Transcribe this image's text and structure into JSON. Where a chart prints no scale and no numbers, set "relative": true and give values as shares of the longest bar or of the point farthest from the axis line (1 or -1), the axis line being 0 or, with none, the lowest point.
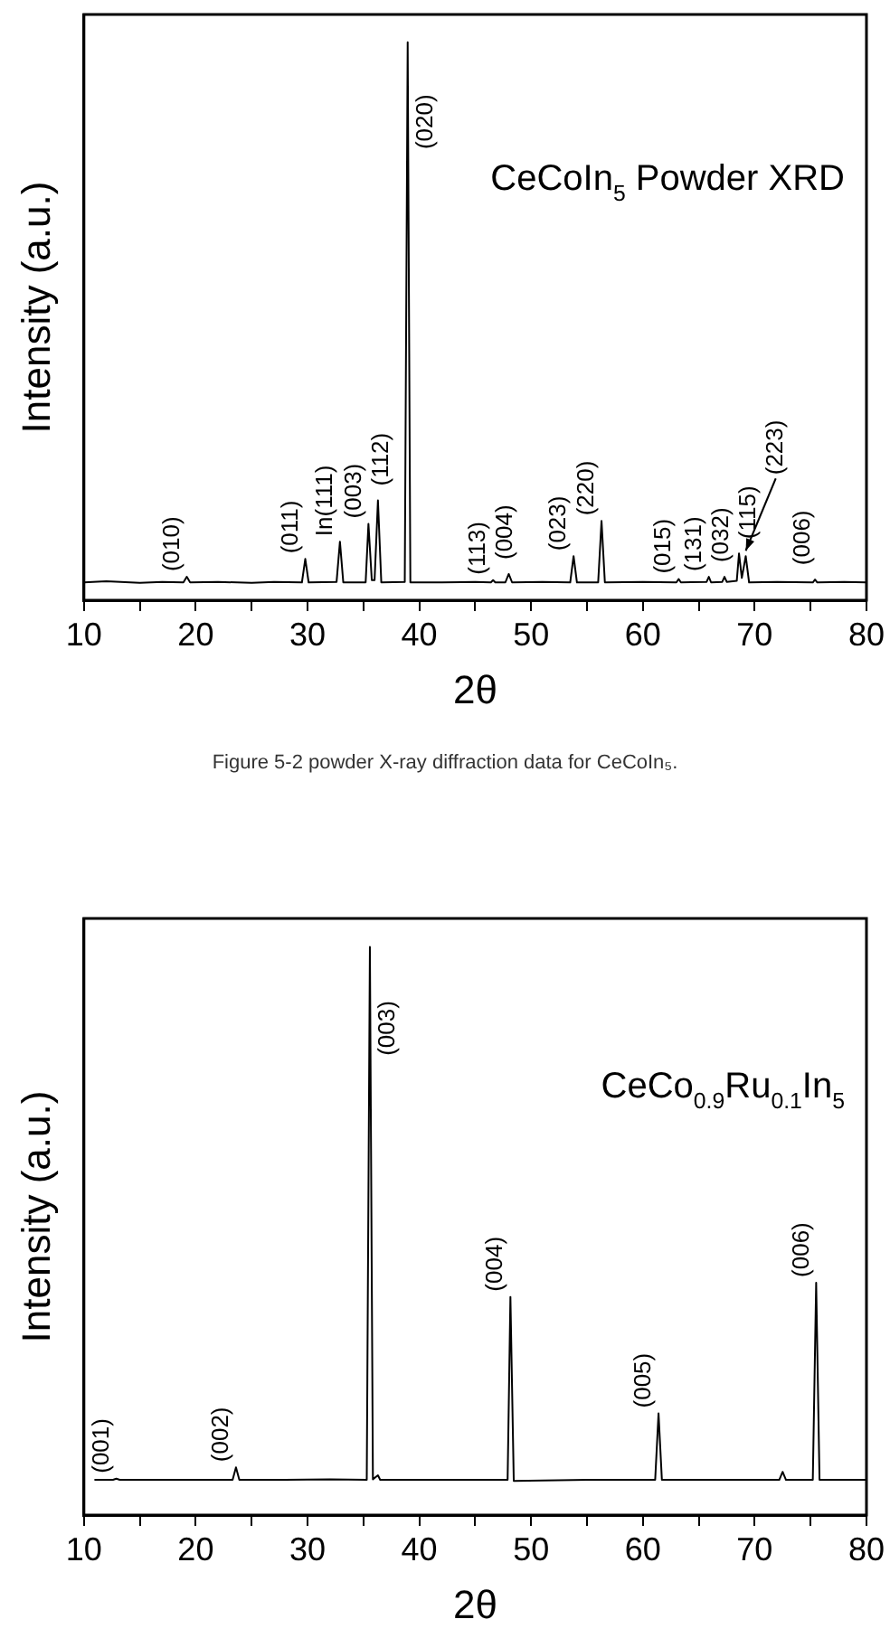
{
  "chart_data": [
    {
      "type": "line",
      "relative": true,
      "xlabel": "2θ",
      "ylabel": "Intensity (a.u.)",
      "series": [
        {
          "color": "#000000",
          "x": [
            10,
            12,
            15,
            17,
            18.9,
            19.2,
            19.5,
            22,
            25,
            27,
            29.5,
            29.8,
            30.1,
            32.6,
            32.9,
            33.2,
            35.2,
            35.45,
            35.75,
            36.0,
            36.3,
            36.6,
            38.7,
            38.96,
            39.2,
            42,
            45,
            46.4,
            46.6,
            46.8,
            47.7,
            48.0,
            48.3,
            51,
            53.5,
            53.8,
            54.1,
            56.0,
            56.3,
            56.6,
            60,
            63.0,
            63.2,
            63.4,
            65.7,
            65.9,
            66.1,
            67.1,
            67.3,
            67.5,
            68.4,
            68.6,
            68.85,
            69.2,
            69.5,
            72,
            75.2,
            75.4,
            75.6,
            78,
            80
          ],
          "values": [
            0.032,
            0.034,
            0.031,
            0.033,
            0.032,
            0.042,
            0.032,
            0.033,
            0.031,
            0.033,
            0.032,
            0.074,
            0.032,
            0.033,
            0.105,
            0.032,
            0.032,
            0.137,
            0.036,
            0.036,
            0.179,
            0.032,
            0.033,
            1,
            0.032,
            0.032,
            0.033,
            0.032,
            0.036,
            0.032,
            0.032,
            0.047,
            0.032,
            0.033,
            0.032,
            0.079,
            0.032,
            0.032,
            0.142,
            0.032,
            0.033,
            0.032,
            0.038,
            0.032,
            0.033,
            0.042,
            0.032,
            0.033,
            0.042,
            0.033,
            0.035,
            0.084,
            0.04,
            0.079,
            0.032,
            0.033,
            0.032,
            0.037,
            0.032,
            0.033,
            0.032
          ]
        }
      ],
      "xlim": [
        10,
        80
      ],
      "xticks": [
        10,
        {
          "value": 15,
          "label": null
        },
        20,
        {
          "value": 25,
          "label": null
        },
        30,
        {
          "value": 35,
          "label": null
        },
        40,
        {
          "value": 45,
          "label": null
        },
        50,
        {
          "value": 55,
          "label": null
        },
        60,
        {
          "value": 65,
          "label": null
        },
        70,
        {
          "value": 75,
          "label": null
        },
        80
      ],
      "annotations": [
        "CeCoIn$_{5}$ Powder XRD",
        "Figure 5-2 powder X-ray diffraction data for CeCoIn₅.",
        {
          "text": "(010)",
          "x": 19.2,
          "y": 0.042
        },
        {
          "text": "(011)",
          "x": 29.8,
          "y": 0.074
        },
        {
          "text": "In(111)",
          "x": 32.9,
          "y": 0.105
        },
        {
          "text": "(003)",
          "x": 35.45,
          "y": 0.137
        },
        {
          "text": "(112)",
          "x": 36.3,
          "y": 0.179
        },
        {
          "text": "(020)",
          "x": 38.96,
          "y": 1
        },
        {
          "text": "(113)",
          "x": 46.6,
          "y": 0.036
        },
        {
          "text": "(004)",
          "x": 48.0,
          "y": 0.047
        },
        {
          "text": "(023)",
          "x": 53.8,
          "y": 0.079
        },
        {
          "text": "(220)",
          "x": 56.3,
          "y": 0.142
        },
        {
          "text": "(015)",
          "x": 63.2,
          "y": 0.038
        },
        {
          "text": "(131)",
          "x": 65.9,
          "y": 0.042
        },
        {
          "text": "(032)",
          "x": 67.3,
          "y": 0.042
        },
        {
          "text": "(115)",
          "x": 68.6,
          "y": 0.084
        },
        {
          "text": "(223)",
          "x": 69.2,
          "y": 0.079
        },
        {
          "text": "(006)",
          "x": 75.4,
          "y": 0.037
        }
      ]
    },
    {
      "type": "line",
      "relative": true,
      "xlabel": "2θ",
      "ylabel": "Intensity (a.u.)",
      "series": [
        {
          "color": "#000000",
          "x": [
            11,
            12.6,
            12.9,
            13.2,
            15,
            20,
            23.3,
            23.6,
            23.9,
            28,
            32,
            35.3,
            35.58,
            35.85,
            36.3,
            36.5,
            40,
            45,
            47.9,
            48.15,
            48.45,
            55,
            61.1,
            61.4,
            61.7,
            68,
            72.2,
            72.5,
            72.8,
            75.2,
            75.5,
            75.8,
            80
          ],
          "values": [
            0.062,
            0.062,
            0.064,
            0.062,
            0.062,
            0.062,
            0.062,
            0.084,
            0.062,
            0.062,
            0.063,
            0.062,
            1,
            0.063,
            0.07,
            0.062,
            0.062,
            0.062,
            0.062,
            0.384,
            0.06,
            0.062,
            0.062,
            0.179,
            0.062,
            0.062,
            0.062,
            0.076,
            0.062,
            0.062,
            0.409,
            0.062,
            0.062
          ]
        }
      ],
      "xlim": [
        10,
        80
      ],
      "xticks": [
        10,
        {
          "value": 15,
          "label": null
        },
        20,
        {
          "value": 25,
          "label": null
        },
        30,
        {
          "value": 35,
          "label": null
        },
        40,
        {
          "value": 45,
          "label": null
        },
        50,
        {
          "value": 55,
          "label": null
        },
        60,
        {
          "value": 65,
          "label": null
        },
        70,
        {
          "value": 75,
          "label": null
        },
        80
      ],
      "annotations": [
        "CeCo$_{0.9}$Ru$_{0.1}$In$_{5}$",
        {
          "text": "(001)",
          "x": 12.9,
          "y": 0.064
        },
        {
          "text": "(002)",
          "x": 23.6,
          "y": 0.084
        },
        {
          "text": "(003)",
          "x": 35.58,
          "y": 1
        },
        {
          "text": "(004)",
          "x": 48.15,
          "y": 0.384
        },
        {
          "text": "(005)",
          "x": 61.4,
          "y": 0.179
        },
        {
          "text": "(006)",
          "x": 75.5,
          "y": 0.409
        }
      ]
    }
  ]
}
